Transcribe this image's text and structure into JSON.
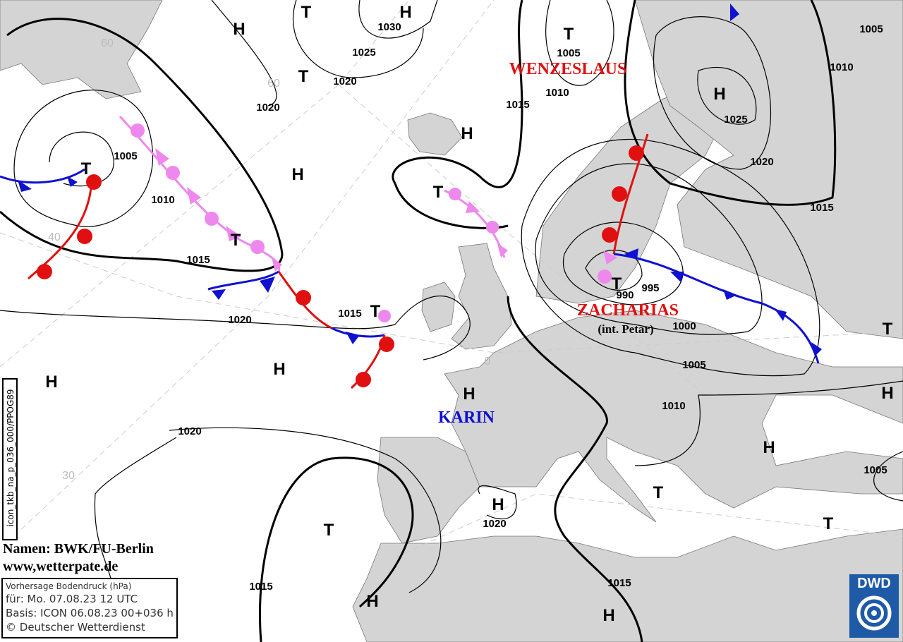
{
  "map": {
    "credit_names": "Namen: BWK/FU-Berlin",
    "credit_url": "www,wetterpate.de",
    "model_code": "icon_tkb_na_p_036_000/PPOG89",
    "info": {
      "title": "Vorhersage Bodendruck (hPa)",
      "valid": "für:  Mo. 07.08.23  12 UTC",
      "base": "Basis: ICON  06.08.23 00+036 h",
      "copyright": "© Deutscher Wetterdienst"
    },
    "logo": "DWD",
    "system_names": [
      {
        "text": "WENZESLAUS",
        "color": "#e01010"
      },
      {
        "text": "ZACHARIAS",
        "color": "#e01010"
      },
      {
        "text": "(int. Petar)",
        "color": "#000000"
      },
      {
        "text": "KARIN",
        "color": "#1010d0"
      }
    ],
    "isobar_labels": [
      "1030",
      "1025",
      "1020",
      "1020",
      "1005",
      "1010",
      "1015",
      "1020",
      "1015",
      "1020",
      "1015",
      "1020",
      "1015",
      "1010",
      "1005",
      "1000",
      "995",
      "990",
      "1015",
      "1005",
      "1010",
      "1025",
      "1020",
      "1015",
      "1010",
      "1005",
      "1005"
    ],
    "pressure_centers": [
      "H",
      "T",
      "H",
      "T",
      "T",
      "H",
      "H",
      "H",
      "T",
      "T",
      "T",
      "T",
      "H",
      "H",
      "H",
      "T",
      "T",
      "H",
      "H",
      "T",
      "T",
      "H",
      "T",
      "H",
      "H"
    ],
    "latitude_labels": [
      "60",
      "60",
      "40",
      "30",
      "0"
    ],
    "colors": {
      "land": "#d4d4d4",
      "warm_front": "#e01010",
      "cold_front": "#1010d0",
      "occlusion": "#ee88ee"
    }
  }
}
